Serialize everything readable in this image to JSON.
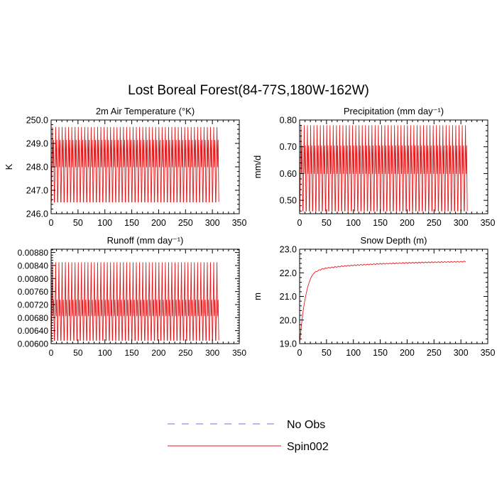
{
  "title": "Lost Boreal Forest(84-77S,180W-162W)",
  "colors": {
    "obs": "#6f6fe8",
    "spin": "#e41a1c",
    "axis": "#000000"
  },
  "legend": [
    {
      "label": "No Obs",
      "style": "dashed",
      "color": "#6f6fe8"
    },
    {
      "label": "Spin002",
      "style": "solid",
      "color": "#e41a1c"
    }
  ],
  "chart_data": [
    {
      "type": "line",
      "title": "2m Air Temperature (°K)",
      "ylabel": "K",
      "xlim": [
        0,
        350
      ],
      "xticks": [
        0,
        50,
        100,
        150,
        200,
        250,
        300,
        350
      ],
      "ylim": [
        246.0,
        250.0
      ],
      "yticks": [
        246.0,
        247.0,
        248.0,
        249.0,
        250.0
      ],
      "yticklabels": [
        "246.0",
        "247.0",
        "248.0",
        "249.0",
        "250.0"
      ],
      "series": [
        {
          "name": "Spin002",
          "pattern": "seasonal",
          "period": 6,
          "x_start": 0,
          "x_end": 310,
          "min": 246.5,
          "max_high": 249.7,
          "max_low": 249.15,
          "start": 248.5
        }
      ]
    },
    {
      "type": "line",
      "title": "Precipitation (mm day⁻¹)",
      "ylabel": "mm/d",
      "xlim": [
        0,
        350
      ],
      "xticks": [
        0,
        50,
        100,
        150,
        200,
        250,
        300,
        350
      ],
      "ylim": [
        0.45,
        0.8
      ],
      "yticks": [
        0.5,
        0.6,
        0.7,
        0.8
      ],
      "yticklabels": [
        "0.50",
        "0.60",
        "0.70",
        "0.80"
      ],
      "series": [
        {
          "name": "Spin002",
          "pattern": "seasonal",
          "period": 6,
          "x_start": 0,
          "x_end": 310,
          "min": 0.46,
          "max_high": 0.78,
          "max_low": 0.705,
          "start": 0.62
        }
      ]
    },
    {
      "type": "line",
      "title": "Runoff (mm day⁻¹)",
      "ylabel": "",
      "xlim": [
        0,
        350
      ],
      "xticks": [
        0,
        50,
        100,
        150,
        200,
        250,
        300,
        350
      ],
      "ylim": [
        0.006,
        0.0089
      ],
      "yticks": [
        0.006,
        0.0064,
        0.0068,
        0.0072,
        0.0076,
        0.008,
        0.0084,
        0.0088
      ],
      "yticklabels": [
        "0.00600",
        "0.00640",
        "0.00680",
        "0.00720",
        "0.00760",
        "0.00800",
        "0.00840",
        "0.00880"
      ],
      "series": [
        {
          "name": "Spin002",
          "pattern": "seasonal",
          "period": 6,
          "x_start": 0,
          "x_end": 310,
          "min": 0.0061,
          "max_high": 0.0085,
          "max_low": 0.00735,
          "start": 0.0087
        }
      ]
    },
    {
      "type": "line",
      "title": "Snow Depth (m)",
      "ylabel": "m",
      "xlim": [
        0,
        350
      ],
      "xticks": [
        0,
        50,
        100,
        150,
        200,
        250,
        300,
        350
      ],
      "ylim": [
        19.0,
        23.0
      ],
      "yticks": [
        19.0,
        20.0,
        21.0,
        22.0,
        23.0
      ],
      "yticklabels": [
        "19.0",
        "20.0",
        "21.0",
        "22.0",
        "23.0"
      ],
      "series": [
        {
          "name": "Spin002",
          "pattern": "saturating",
          "x_start": 0,
          "x_end": 310,
          "points": [
            [
              0,
              19.0
            ],
            [
              3,
              19.7
            ],
            [
              6,
              20.3
            ],
            [
              10,
              20.9
            ],
            [
              15,
              21.4
            ],
            [
              20,
              21.75
            ],
            [
              25,
              21.95
            ],
            [
              30,
              22.05
            ],
            [
              40,
              22.15
            ],
            [
              50,
              22.2
            ],
            [
              75,
              22.27
            ],
            [
              100,
              22.32
            ],
            [
              150,
              22.38
            ],
            [
              200,
              22.42
            ],
            [
              250,
              22.45
            ],
            [
              300,
              22.47
            ],
            [
              310,
              22.48
            ]
          ],
          "ripple": 0.04,
          "period": 6
        }
      ]
    }
  ]
}
